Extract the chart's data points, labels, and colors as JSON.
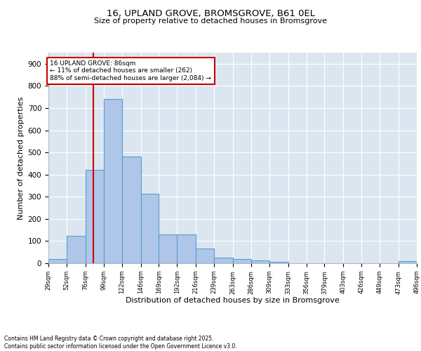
{
  "title1": "16, UPLAND GROVE, BROMSGROVE, B61 0EL",
  "title2": "Size of property relative to detached houses in Bromsgrove",
  "xlabel": "Distribution of detached houses by size in Bromsgrove",
  "ylabel": "Number of detached properties",
  "bins": [
    29,
    52,
    76,
    99,
    122,
    146,
    169,
    192,
    216,
    239,
    263,
    286,
    309,
    333,
    356,
    379,
    403,
    426,
    449,
    473,
    496
  ],
  "counts": [
    20,
    125,
    420,
    740,
    480,
    315,
    130,
    130,
    65,
    25,
    20,
    12,
    5,
    0,
    0,
    0,
    0,
    0,
    0,
    8
  ],
  "bar_color": "#aec6e8",
  "bar_edge_color": "#5b9bd5",
  "vline_x": 86,
  "vline_color": "#cc0000",
  "annotation_box_color": "#cc0000",
  "annotation_text": "16 UPLAND GROVE: 86sqm\n← 11% of detached houses are smaller (262)\n88% of semi-detached houses are larger (2,084) →",
  "ylim": [
    0,
    950
  ],
  "yticks": [
    0,
    100,
    200,
    300,
    400,
    500,
    600,
    700,
    800,
    900
  ],
  "tick_labels": [
    "29sqm",
    "52sqm",
    "76sqm",
    "99sqm",
    "122sqm",
    "146sqm",
    "169sqm",
    "192sqm",
    "216sqm",
    "239sqm",
    "263sqm",
    "286sqm",
    "309sqm",
    "333sqm",
    "356sqm",
    "379sqm",
    "403sqm",
    "426sqm",
    "449sqm",
    "473sqm",
    "496sqm"
  ],
  "bg_color": "#dce6f1",
  "grid_color": "#ffffff",
  "footer": "Contains HM Land Registry data © Crown copyright and database right 2025.\nContains public sector information licensed under the Open Government Licence v3.0."
}
